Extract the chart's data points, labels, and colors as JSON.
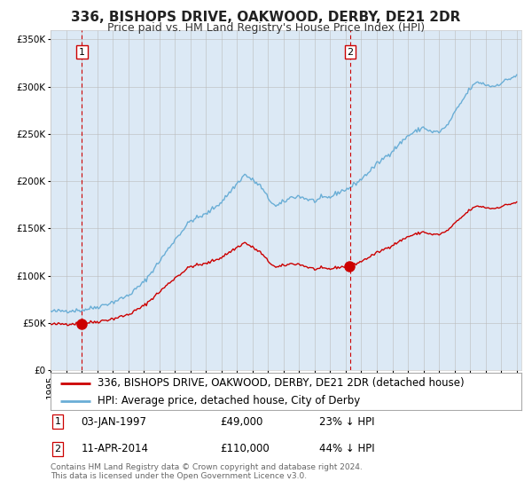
{
  "title": "336, BISHOPS DRIVE, OAKWOOD, DERBY, DE21 2DR",
  "subtitle": "Price paid vs. HM Land Registry's House Price Index (HPI)",
  "legend_line1": "336, BISHOPS DRIVE, OAKWOOD, DERBY, DE21 2DR (detached house)",
  "legend_line2": "HPI: Average price, detached house, City of Derby",
  "annotation1_label": "1",
  "annotation1_date": "03-JAN-1997",
  "annotation1_price": "£49,000",
  "annotation1_hpi": "23% ↓ HPI",
  "annotation2_label": "2",
  "annotation2_date": "11-APR-2014",
  "annotation2_price": "£110,000",
  "annotation2_hpi": "44% ↓ HPI",
  "sale1_date_num": 1997.01,
  "sale1_price": 49000,
  "sale2_date_num": 2014.28,
  "sale2_price": 110000,
  "hpi_color": "#6aaed6",
  "price_color": "#cc0000",
  "background_color": "#dce9f5",
  "vline_color": "#cc0000",
  "grid_color": "#bbbbbb",
  "footnote": "Contains HM Land Registry data © Crown copyright and database right 2024.\nThis data is licensed under the Open Government Licence v3.0.",
  "ylim": [
    0,
    360000
  ],
  "yticks": [
    0,
    50000,
    100000,
    150000,
    200000,
    250000,
    300000,
    350000
  ],
  "ytick_labels": [
    "£0",
    "£50K",
    "£100K",
    "£150K",
    "£200K",
    "£250K",
    "£300K",
    "£350K"
  ],
  "title_fontsize": 11,
  "subtitle_fontsize": 9,
  "tick_fontsize": 7.5,
  "legend_fontsize": 8.5,
  "ann_fontsize": 8.5,
  "footnote_fontsize": 6.5
}
